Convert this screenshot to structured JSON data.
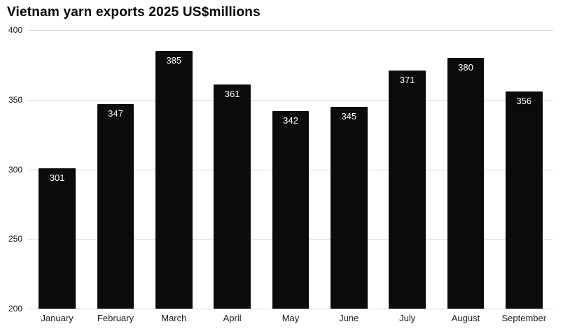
{
  "chart_data": {
    "type": "bar",
    "title": "Vietnam yarn exports 2025 US$millions",
    "categories": [
      "January",
      "February",
      "March",
      "April",
      "May",
      "June",
      "July",
      "August",
      "September"
    ],
    "values": [
      301,
      347,
      385,
      361,
      342,
      345,
      371,
      380,
      356
    ],
    "xlabel": "",
    "ylabel": "",
    "ylim": [
      200,
      400
    ],
    "yticks": [
      400,
      350,
      300,
      250,
      200
    ],
    "grid": true,
    "legend": false,
    "colors": {
      "bar": "#0b0b0b",
      "value_label": "#ffffff",
      "gridline": "#d9d9d9",
      "axis_text": "#1a1a1a",
      "background": "#ffffff",
      "title_text": "#000000"
    }
  }
}
